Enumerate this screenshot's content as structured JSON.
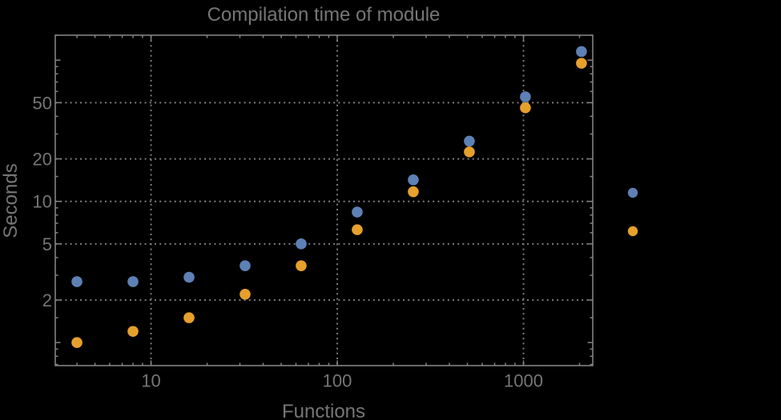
{
  "colors": {
    "background": "#000000",
    "frame": "#828282",
    "grid": "#7d7d7d",
    "text": "#767676",
    "series1": "#5E81B5",
    "series2": "#E6A02C"
  },
  "chart_data": {
    "type": "scatter",
    "title": "Compilation time of module",
    "xlabel": "Functions",
    "ylabel": "Seconds",
    "x_scale": "log",
    "y_scale": "log",
    "x_range": [
      3.06,
      2355
    ],
    "y_range": [
      0.687,
      150.2
    ],
    "grid": "dotted",
    "x": [
      4,
      8,
      16,
      32,
      64,
      128,
      256,
      512,
      1024,
      2048
    ],
    "series": [
      {
        "name": "series-1-blue",
        "color": "#5E81B5",
        "values": [
          2.7,
          2.7,
          2.9,
          3.5,
          5.0,
          8.4,
          14.2,
          26.7,
          55,
          115
        ]
      },
      {
        "name": "series-2-orange",
        "color": "#E6A02C",
        "values": [
          1.0,
          1.2,
          1.5,
          2.2,
          3.5,
          6.3,
          11.7,
          22.4,
          46,
          95
        ]
      }
    ],
    "x_ticks": [
      {
        "v": 10,
        "label": "10"
      },
      {
        "v": 100,
        "label": "100"
      },
      {
        "v": 1000,
        "label": "1000"
      }
    ],
    "x_minor_ticks": [
      4,
      5,
      6,
      7,
      8,
      9,
      20,
      30,
      40,
      50,
      60,
      70,
      80,
      90,
      200,
      300,
      400,
      500,
      600,
      700,
      800,
      900,
      2000
    ],
    "y_ticks": [
      {
        "v": 2,
        "label": "2"
      },
      {
        "v": 5,
        "label": "5"
      },
      {
        "v": 10,
        "label": "10"
      },
      {
        "v": 20,
        "label": "20"
      },
      {
        "v": 50,
        "label": "50"
      }
    ],
    "y_minor_ticks": [
      0.7,
      0.8,
      0.9,
      1,
      1.5,
      3,
      4,
      6,
      7,
      8,
      9,
      15,
      30,
      40,
      60,
      70,
      80,
      90,
      100,
      150
    ],
    "grid_x_values": [
      10,
      100,
      1000
    ],
    "grid_y_values": [
      2,
      5,
      10,
      20,
      50
    ],
    "legend": {
      "position": "right-outside",
      "entries": [
        {
          "label": "",
          "color": "#5E81B5"
        },
        {
          "label": "",
          "color": "#E6A02C"
        }
      ]
    }
  }
}
